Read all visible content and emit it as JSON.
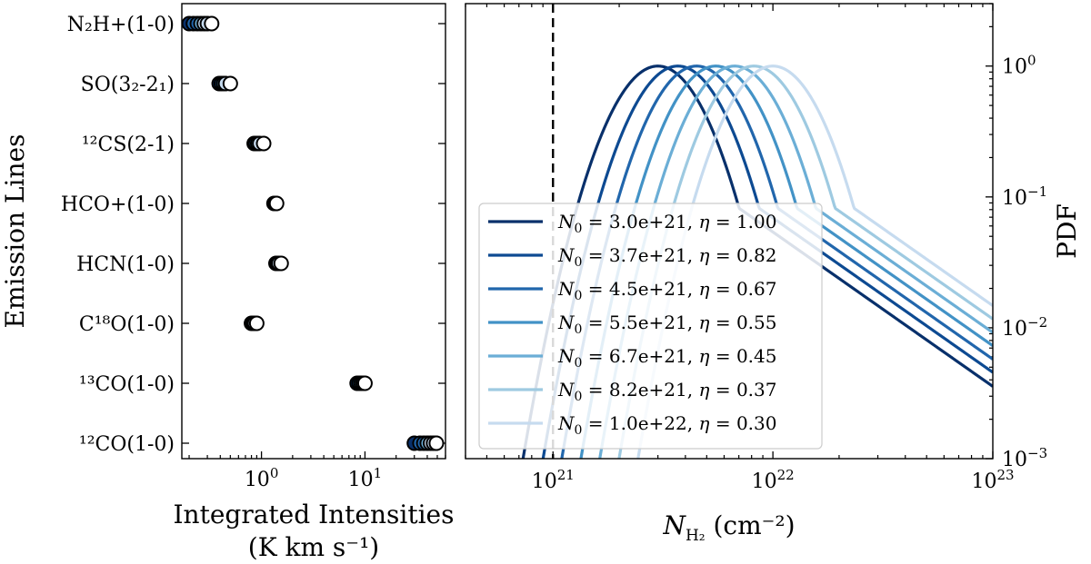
{
  "chart_data": [
    {
      "type": "scatter",
      "panel": "left",
      "xlabel": "Integrated Intensities",
      "xlabel_units": "(K km s⁻¹)",
      "ylabel": "Emission Lines",
      "xscale": "log",
      "xlim": [
        0.17,
        60
      ],
      "xticks": [
        {
          "value": 1,
          "base": "10",
          "exp": "0"
        },
        {
          "value": 10,
          "base": "10",
          "exp": "1"
        }
      ],
      "categories": [
        {
          "name": "N2H+(1-0)",
          "label": "N₂H+(1-0)",
          "values": [
            0.2,
            0.22,
            0.24,
            0.26,
            0.28,
            0.3,
            0.33
          ]
        },
        {
          "name": "SO(32-21)",
          "label": "SO(3₂-2₁)",
          "values": [
            0.39,
            0.41,
            0.43,
            0.45,
            0.5
          ]
        },
        {
          "name": "12CS(2-1)",
          "label": "¹²CS(2-1)",
          "values": [
            0.85,
            0.88,
            0.92,
            0.96,
            1.05
          ]
        },
        {
          "name": "HCO+(1-0)",
          "label": "HCO+(1-0)",
          "values": [
            1.32,
            1.36,
            1.4
          ]
        },
        {
          "name": "HCN(1-0)",
          "label": "HCN(1-0)",
          "values": [
            1.38,
            1.42,
            1.47,
            1.55
          ]
        },
        {
          "name": "C18O(1-0)",
          "label": "C¹⁸O(1-0)",
          "values": [
            0.8,
            0.83,
            0.86,
            0.9
          ]
        },
        {
          "name": "13CO(1-0)",
          "label": "¹³CO(1-0)",
          "values": [
            8.4,
            8.8,
            9.2,
            9.6,
            10.0
          ]
        },
        {
          "name": "12CO(1-0)",
          "label": "¹²CO(1-0)",
          "values": [
            30,
            34,
            37,
            40,
            43,
            46,
            49
          ]
        }
      ]
    },
    {
      "type": "line",
      "panel": "right",
      "xlabel": "N",
      "xlabel_sub": "H₂",
      "xlabel_units": "(cm⁻²)",
      "ylabel": "PDF",
      "xscale": "log",
      "yscale": "log",
      "xlim": [
        4e+20,
        1e+23
      ],
      "ylim": [
        0.001,
        3
      ],
      "vline": 1e+21,
      "xticks": [
        {
          "value": 1e+21,
          "base": "10",
          "exp": "21"
        },
        {
          "value": 1e+22,
          "base": "10",
          "exp": "22"
        },
        {
          "value": 1e+23,
          "base": "10",
          "exp": "23"
        }
      ],
      "yticks": [
        {
          "value": 1,
          "base": "10",
          "exp": "0"
        },
        {
          "value": 0.1,
          "base": "10",
          "exp": "−1"
        },
        {
          "value": 0.01,
          "base": "10",
          "exp": "−2"
        },
        {
          "value": 0.001,
          "base": "10",
          "exp": "−3"
        }
      ],
      "legend_position": "lower-left",
      "series": [
        {
          "N0_label": "3.0e+21",
          "eta_label": "1.00",
          "N0": 3e+21,
          "eta": 1.0,
          "color": "#08306b"
        },
        {
          "N0_label": "3.7e+21",
          "eta_label": "0.82",
          "N0": 3.7e+21,
          "eta": 0.82,
          "color": "#0d4a92"
        },
        {
          "N0_label": "4.5e+21",
          "eta_label": "0.67",
          "N0": 4.5e+21,
          "eta": 0.67,
          "color": "#2166ac"
        },
        {
          "N0_label": "5.5e+21",
          "eta_label": "0.55",
          "N0": 5.5e+21,
          "eta": 0.55,
          "color": "#4292c6"
        },
        {
          "N0_label": "6.7e+21",
          "eta_label": "0.45",
          "N0": 6.7e+21,
          "eta": 0.45,
          "color": "#6baed6"
        },
        {
          "N0_label": "8.2e+21",
          "eta_label": "0.37",
          "N0": 8.2e+21,
          "eta": 0.37,
          "color": "#9ecae1"
        },
        {
          "N0_label": "1.0e+22",
          "eta_label": "0.30",
          "N0": 1e+22,
          "eta": 0.3,
          "color": "#c6dbef"
        }
      ]
    }
  ]
}
